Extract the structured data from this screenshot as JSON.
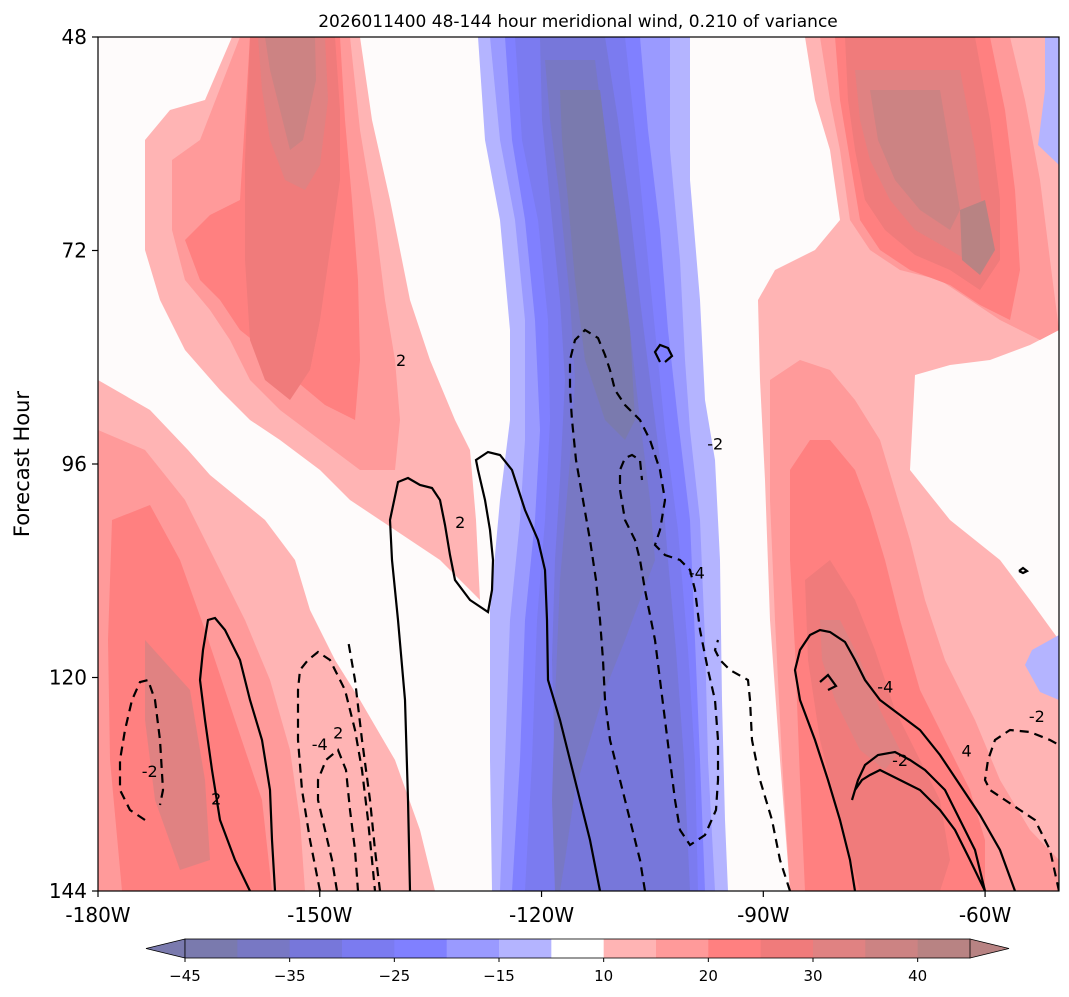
{
  "chart_data": {
    "type": "heatmap",
    "title": "2026011400 48-144 hour meridional wind, 0.210 of variance",
    "xlabel": "",
    "ylabel": "Forecast Hour",
    "xlim": [
      -180,
      -50
    ],
    "ylim": [
      48,
      144
    ],
    "y_inverted": true,
    "x_ticks": [
      -180,
      -150,
      -120,
      -90,
      -60
    ],
    "x_tick_labels": [
      "-180W",
      "-150W",
      "-120W",
      "-90W",
      "-60W"
    ],
    "y_ticks": [
      48,
      72,
      96,
      120,
      144
    ],
    "y_tick_labels": [
      "48",
      "72",
      "96",
      "120",
      "144"
    ],
    "colorbar": {
      "levels": [
        -45,
        -40,
        -35,
        -30,
        -25,
        -20,
        -15,
        -10,
        10,
        15,
        20,
        25,
        30,
        35,
        40,
        45
      ],
      "tick_values": [
        -45,
        -35,
        -25,
        -15,
        10,
        20,
        30,
        40
      ],
      "tick_labels": [
        "−45",
        "−35",
        "−25",
        "−15",
        "10",
        "20",
        "30",
        "40"
      ],
      "colors": [
        "#7a7aae",
        "#7878c4",
        "#7777da",
        "#7b7bf0",
        "#8080ff",
        "#9a9aff",
        "#b4b4ff",
        "#ffffff",
        "#ffb4b4",
        "#ff9a9a",
        "#ff8080",
        "#f07b7b",
        "#e08282",
        "#cc8383",
        "#b88383"
      ],
      "extend": "both",
      "orientation": "horizontal"
    },
    "grid": false,
    "filled_field": "meridional wind",
    "contour_field": "variance contours",
    "contour_labels": [
      {
        "text": "2",
        "x": -139,
        "y": 84.3
      },
      {
        "text": "-2",
        "x": -96.5,
        "y": 93.7
      },
      {
        "text": "2",
        "x": -131,
        "y": 102.5
      },
      {
        "text": "-4",
        "x": -99,
        "y": 108.2
      },
      {
        "text": "-2",
        "x": -173,
        "y": 130.5
      },
      {
        "text": "2",
        "x": -164,
        "y": 133.6
      },
      {
        "text": "-4",
        "x": -150,
        "y": 127.5
      },
      {
        "text": "2",
        "x": -147.5,
        "y": 126.2
      },
      {
        "text": "-4",
        "x": -73.5,
        "y": 121
      },
      {
        "text": "-2",
        "x": -71.5,
        "y": 129.3
      },
      {
        "text": "4",
        "x": -62.5,
        "y": 128.2
      },
      {
        "text": "-2",
        "x": -53,
        "y": 124.3
      }
    ]
  }
}
